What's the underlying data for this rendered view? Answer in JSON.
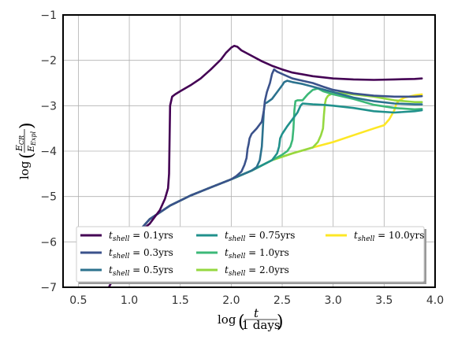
{
  "chart_data": {
    "type": "line",
    "xlabel": "log(t / 1 days)",
    "ylabel": "log(E_CR / E_Expl)",
    "xlim": [
      0.35,
      4.0
    ],
    "ylim": [
      -7,
      -1
    ],
    "xticks": [
      "0.5",
      "1.0",
      "1.5",
      "2.0",
      "2.5",
      "3.0",
      "3.5",
      "4.0"
    ],
    "yticks": [
      "−7",
      "−6",
      "−5",
      "−4",
      "−3",
      "−2",
      "−1"
    ],
    "grid": true,
    "legend_placement": "bottom",
    "series": [
      {
        "name": "t_shell = 0.1yrs",
        "color": "#440154",
        "points": [
          [
            0.8,
            -7.0
          ],
          [
            1.0,
            -6.1
          ],
          [
            1.1,
            -5.78
          ],
          [
            1.2,
            -5.6
          ],
          [
            1.3,
            -5.3
          ],
          [
            1.35,
            -5.05
          ],
          [
            1.38,
            -4.82
          ],
          [
            1.39,
            -4.5
          ],
          [
            1.395,
            -3.8
          ],
          [
            1.4,
            -3.0
          ],
          [
            1.42,
            -2.8
          ],
          [
            1.45,
            -2.75
          ],
          [
            1.5,
            -2.68
          ],
          [
            1.6,
            -2.55
          ],
          [
            1.7,
            -2.4
          ],
          [
            1.8,
            -2.2
          ],
          [
            1.9,
            -1.98
          ],
          [
            1.95,
            -1.83
          ],
          [
            2.0,
            -1.72
          ],
          [
            2.03,
            -1.68
          ],
          [
            2.06,
            -1.7
          ],
          [
            2.1,
            -1.78
          ],
          [
            2.2,
            -1.9
          ],
          [
            2.3,
            -2.02
          ],
          [
            2.4,
            -2.12
          ],
          [
            2.5,
            -2.2
          ],
          [
            2.6,
            -2.27
          ],
          [
            2.8,
            -2.35
          ],
          [
            3.0,
            -2.4
          ],
          [
            3.2,
            -2.42
          ],
          [
            3.4,
            -2.43
          ],
          [
            3.6,
            -2.42
          ],
          [
            3.8,
            -2.41
          ],
          [
            3.87,
            -2.4
          ]
        ]
      },
      {
        "name": "t_shell = 0.3yrs",
        "color": "#3b528b",
        "points": [
          [
            1.0,
            -6.0
          ],
          [
            1.2,
            -5.5
          ],
          [
            1.4,
            -5.2
          ],
          [
            1.6,
            -4.98
          ],
          [
            1.8,
            -4.8
          ],
          [
            2.0,
            -4.62
          ],
          [
            2.05,
            -4.55
          ],
          [
            2.1,
            -4.45
          ],
          [
            2.13,
            -4.3
          ],
          [
            2.15,
            -4.15
          ],
          [
            2.16,
            -3.95
          ],
          [
            2.17,
            -3.85
          ],
          [
            2.18,
            -3.72
          ],
          [
            2.2,
            -3.62
          ],
          [
            2.25,
            -3.5
          ],
          [
            2.3,
            -3.35
          ],
          [
            2.32,
            -3.1
          ],
          [
            2.33,
            -2.9
          ],
          [
            2.35,
            -2.7
          ],
          [
            2.38,
            -2.5
          ],
          [
            2.4,
            -2.3
          ],
          [
            2.42,
            -2.2
          ],
          [
            2.45,
            -2.25
          ],
          [
            2.5,
            -2.3
          ],
          [
            2.6,
            -2.4
          ],
          [
            2.7,
            -2.45
          ],
          [
            2.8,
            -2.5
          ],
          [
            2.9,
            -2.58
          ],
          [
            3.0,
            -2.65
          ],
          [
            3.2,
            -2.73
          ],
          [
            3.4,
            -2.78
          ],
          [
            3.6,
            -2.8
          ],
          [
            3.8,
            -2.8
          ],
          [
            3.87,
            -2.79
          ]
        ]
      },
      {
        "name": "t_shell = 0.5yrs",
        "color": "#2c728e",
        "points": [
          [
            1.0,
            -6.0
          ],
          [
            1.2,
            -5.5
          ],
          [
            1.4,
            -5.2
          ],
          [
            1.6,
            -4.98
          ],
          [
            1.8,
            -4.8
          ],
          [
            2.0,
            -4.62
          ],
          [
            2.2,
            -4.43
          ],
          [
            2.25,
            -4.35
          ],
          [
            2.28,
            -4.2
          ],
          [
            2.3,
            -3.9
          ],
          [
            2.31,
            -3.5
          ],
          [
            2.32,
            -3.1
          ],
          [
            2.33,
            -2.95
          ],
          [
            2.35,
            -2.93
          ],
          [
            2.4,
            -2.85
          ],
          [
            2.45,
            -2.7
          ],
          [
            2.5,
            -2.55
          ],
          [
            2.52,
            -2.48
          ],
          [
            2.55,
            -2.45
          ],
          [
            2.6,
            -2.48
          ],
          [
            2.7,
            -2.52
          ],
          [
            2.8,
            -2.58
          ],
          [
            3.0,
            -2.7
          ],
          [
            3.2,
            -2.82
          ],
          [
            3.4,
            -2.9
          ],
          [
            3.6,
            -2.95
          ],
          [
            3.8,
            -2.97
          ],
          [
            3.87,
            -2.97
          ]
        ]
      },
      {
        "name": "t_shell = 0.75yrs",
        "color": "#21918c",
        "points": [
          [
            1.0,
            -6.0
          ],
          [
            1.2,
            -5.5
          ],
          [
            1.4,
            -5.2
          ],
          [
            1.6,
            -4.98
          ],
          [
            1.8,
            -4.8
          ],
          [
            2.0,
            -4.62
          ],
          [
            2.2,
            -4.43
          ],
          [
            2.4,
            -4.2
          ],
          [
            2.45,
            -4.05
          ],
          [
            2.47,
            -3.9
          ],
          [
            2.48,
            -3.72
          ],
          [
            2.5,
            -3.62
          ],
          [
            2.55,
            -3.45
          ],
          [
            2.6,
            -3.3
          ],
          [
            2.65,
            -3.15
          ],
          [
            2.68,
            -3.0
          ],
          [
            2.7,
            -2.95
          ],
          [
            2.8,
            -2.97
          ],
          [
            2.9,
            -2.98
          ],
          [
            3.0,
            -3.0
          ],
          [
            3.2,
            -3.05
          ],
          [
            3.4,
            -3.12
          ],
          [
            3.6,
            -3.15
          ],
          [
            3.8,
            -3.12
          ],
          [
            3.87,
            -3.1
          ]
        ]
      },
      {
        "name": "t_shell = 1.0yrs",
        "color": "#3cb878",
        "points": [
          [
            1.0,
            -6.0
          ],
          [
            1.2,
            -5.5
          ],
          [
            1.4,
            -5.2
          ],
          [
            1.6,
            -4.98
          ],
          [
            1.8,
            -4.8
          ],
          [
            2.0,
            -4.62
          ],
          [
            2.2,
            -4.43
          ],
          [
            2.4,
            -4.2
          ],
          [
            2.5,
            -4.08
          ],
          [
            2.55,
            -4.0
          ],
          [
            2.58,
            -3.9
          ],
          [
            2.6,
            -3.75
          ],
          [
            2.61,
            -3.5
          ],
          [
            2.62,
            -3.1
          ],
          [
            2.63,
            -2.9
          ],
          [
            2.65,
            -2.88
          ],
          [
            2.7,
            -2.88
          ],
          [
            2.75,
            -2.75
          ],
          [
            2.8,
            -2.65
          ],
          [
            2.85,
            -2.62
          ],
          [
            2.9,
            -2.68
          ],
          [
            3.0,
            -2.75
          ],
          [
            3.2,
            -2.85
          ],
          [
            3.4,
            -2.98
          ],
          [
            3.6,
            -3.05
          ],
          [
            3.8,
            -3.08
          ],
          [
            3.87,
            -3.07
          ]
        ]
      },
      {
        "name": "t_shell = 2.0yrs",
        "color": "#95d840",
        "points": [
          [
            1.0,
            -6.0
          ],
          [
            1.2,
            -5.5
          ],
          [
            1.4,
            -5.2
          ],
          [
            1.6,
            -4.98
          ],
          [
            1.8,
            -4.8
          ],
          [
            2.0,
            -4.62
          ],
          [
            2.2,
            -4.43
          ],
          [
            2.4,
            -4.2
          ],
          [
            2.6,
            -4.05
          ],
          [
            2.8,
            -3.92
          ],
          [
            2.85,
            -3.8
          ],
          [
            2.88,
            -3.65
          ],
          [
            2.9,
            -3.5
          ],
          [
            2.91,
            -3.2
          ],
          [
            2.92,
            -2.95
          ],
          [
            2.93,
            -2.85
          ],
          [
            2.95,
            -2.78
          ],
          [
            3.0,
            -2.72
          ],
          [
            3.1,
            -2.72
          ],
          [
            3.2,
            -2.75
          ],
          [
            3.4,
            -2.8
          ],
          [
            3.6,
            -2.88
          ],
          [
            3.8,
            -2.92
          ],
          [
            3.87,
            -2.92
          ]
        ]
      },
      {
        "name": "t_shell = 10.0yrs",
        "color": "#fde725",
        "points": [
          [
            1.0,
            -6.0
          ],
          [
            1.2,
            -5.5
          ],
          [
            1.4,
            -5.2
          ],
          [
            1.6,
            -4.98
          ],
          [
            1.8,
            -4.8
          ],
          [
            2.0,
            -4.62
          ],
          [
            2.2,
            -4.43
          ],
          [
            2.4,
            -4.2
          ],
          [
            2.6,
            -4.05
          ],
          [
            2.8,
            -3.92
          ],
          [
            3.0,
            -3.8
          ],
          [
            3.2,
            -3.65
          ],
          [
            3.4,
            -3.5
          ],
          [
            3.5,
            -3.43
          ],
          [
            3.55,
            -3.3
          ],
          [
            3.6,
            -3.1
          ],
          [
            3.62,
            -2.95
          ],
          [
            3.65,
            -2.88
          ],
          [
            3.7,
            -2.82
          ],
          [
            3.8,
            -2.77
          ],
          [
            3.87,
            -2.75
          ]
        ]
      }
    ]
  },
  "legend": [
    {
      "prefix": "t",
      "sub": "shell",
      "rest": " = 0.1yrs",
      "color": "#440154"
    },
    {
      "prefix": "t",
      "sub": "shell",
      "rest": " = 0.3yrs",
      "color": "#3b528b"
    },
    {
      "prefix": "t",
      "sub": "shell",
      "rest": " = 0.5yrs",
      "color": "#2c728e"
    },
    {
      "prefix": "t",
      "sub": "shell",
      "rest": " = 0.75yrs",
      "color": "#21918c"
    },
    {
      "prefix": "t",
      "sub": "shell",
      "rest": " = 1.0yrs",
      "color": "#3cb878"
    },
    {
      "prefix": "t",
      "sub": "shell",
      "rest": " = 2.0yrs",
      "color": "#95d840"
    },
    {
      "prefix": "t",
      "sub": "shell",
      "rest": " = 10.0yrs",
      "color": "#fde725"
    }
  ],
  "axis_text": {
    "x_log": "log",
    "x_num": "t",
    "x_den": "1 days",
    "y_log": "log",
    "y_num": "E",
    "y_num_sub": "CR",
    "y_den": "E",
    "y_den_sub": "Expl"
  }
}
